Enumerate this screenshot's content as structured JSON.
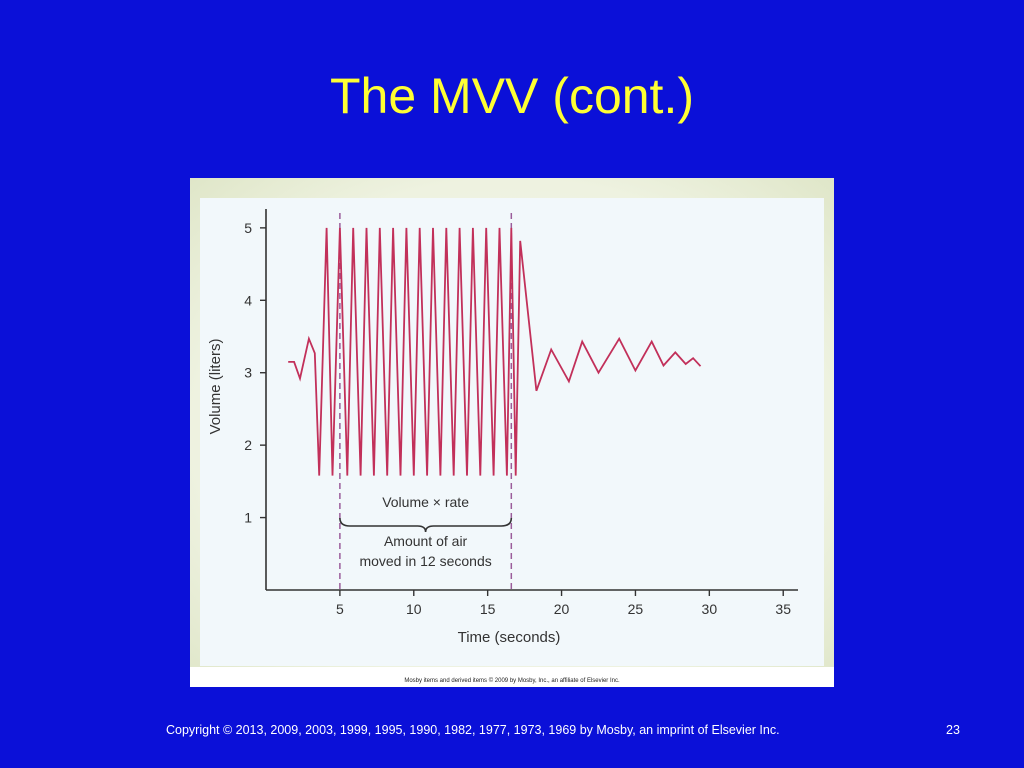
{
  "slide": {
    "title": "The MVV (cont.)",
    "footer": "Copyright © 2013, 2009, 2003, 1999, 1995, 1990, 1982, 1977, 1973, 1969 by Mosby, an imprint of Elsevier Inc.",
    "page_number": "23",
    "figure_credit": "Mosby items and derived items © 2009 by Mosby, Inc., an affiliate of Elsevier Inc."
  },
  "chart_data": {
    "type": "line",
    "xlabel": "Time (seconds)",
    "ylabel": "Volume (liters)",
    "xlim": [
      0,
      36
    ],
    "ylim": [
      0,
      5.15
    ],
    "x_ticks": [
      5,
      10,
      15,
      20,
      25,
      30,
      35
    ],
    "y_ticks": [
      1,
      2,
      3,
      4,
      5
    ],
    "grid": false,
    "line_color": "#c2305a",
    "series": [
      {
        "x": [
          1.5,
          1.9,
          2.3,
          2.9,
          3.3,
          3.6,
          4.1,
          4.5,
          5.0,
          5.5,
          5.9,
          6.4,
          6.8,
          7.3,
          7.7,
          8.2,
          8.6,
          9.1,
          9.5,
          10.0,
          10.4,
          10.9,
          11.3,
          11.8,
          12.2,
          12.7,
          13.1,
          13.6,
          14.0,
          14.5,
          14.9,
          15.4,
          15.8,
          16.3,
          16.6,
          16.9,
          17.2,
          18.3,
          19.3,
          20.5,
          21.4,
          22.5,
          23.9,
          25.0,
          26.1,
          26.9,
          27.7,
          28.4,
          28.9,
          29.4
        ],
        "y": [
          3.15,
          3.15,
          2.92,
          3.47,
          3.27,
          1.58,
          5.0,
          1.58,
          5.0,
          1.58,
          5.0,
          1.58,
          5.0,
          1.58,
          5.0,
          1.58,
          5.0,
          1.58,
          5.0,
          1.58,
          5.0,
          1.58,
          5.0,
          1.58,
          5.0,
          1.58,
          5.0,
          1.58,
          5.0,
          1.58,
          5.0,
          1.58,
          5.0,
          1.58,
          5.0,
          1.58,
          4.82,
          2.75,
          3.32,
          2.88,
          3.43,
          3.0,
          3.47,
          3.03,
          3.43,
          3.1,
          3.28,
          3.12,
          3.2,
          3.09
        ]
      }
    ],
    "markers": [
      5,
      16.6
    ],
    "annotations": {
      "upper": "Volume × rate",
      "lower_line1": "Amount of air",
      "lower_line2": "moved in 12 seconds"
    }
  }
}
